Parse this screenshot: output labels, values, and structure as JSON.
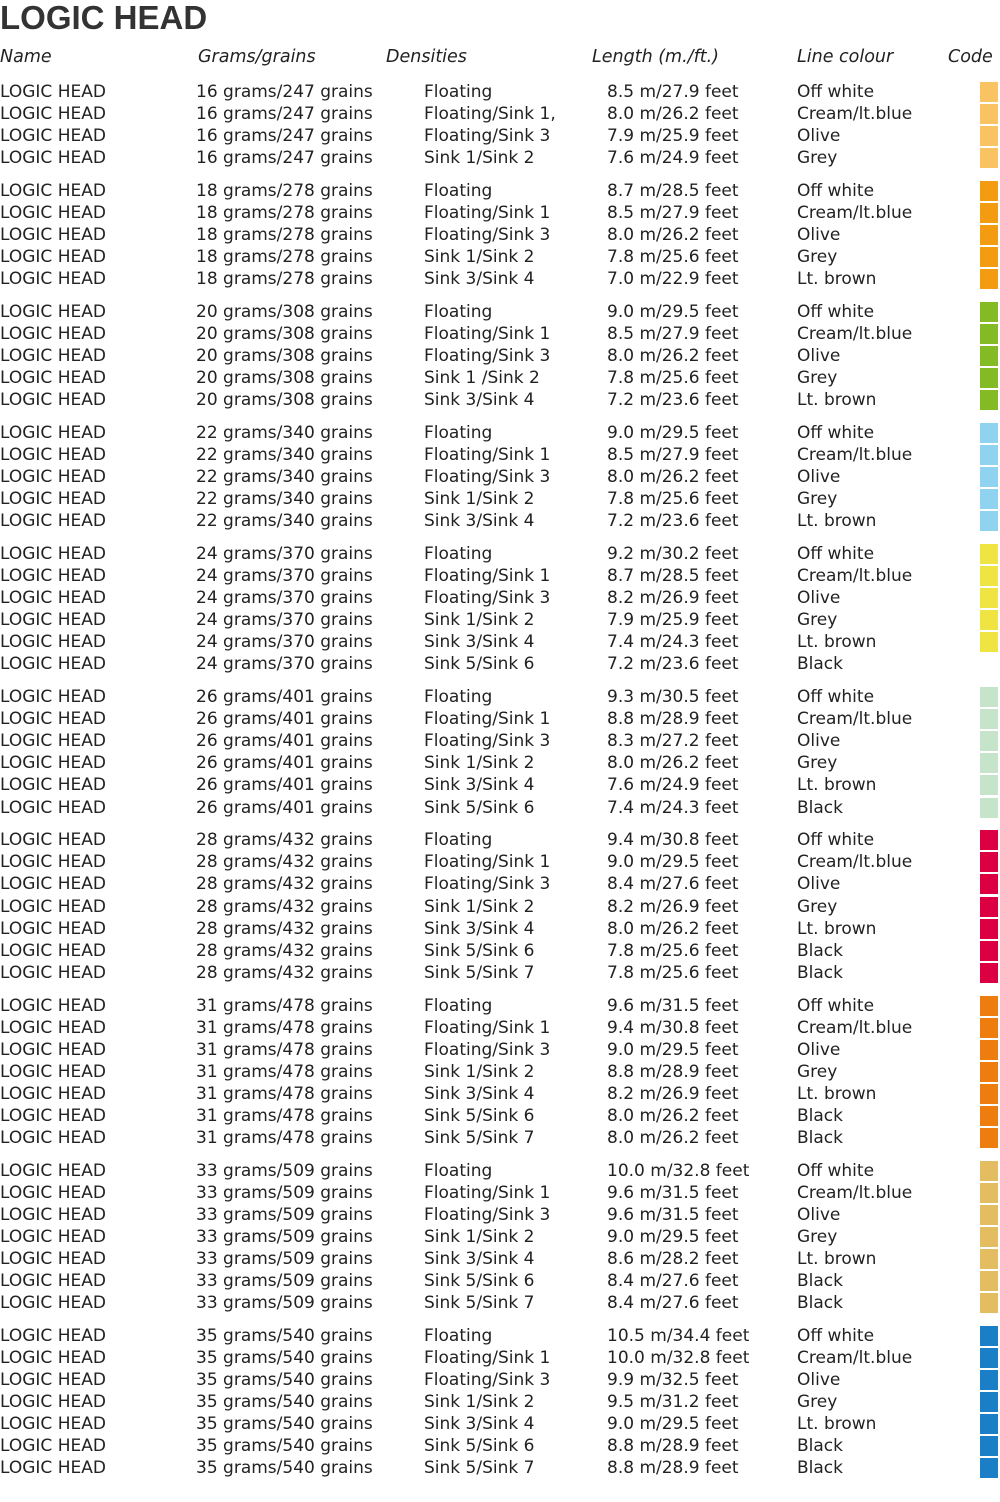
{
  "title": "LOGIC HEAD",
  "headers": [
    "Name",
    "Grams/grains",
    "Densities",
    "Length (m./ft.)",
    "Line colour",
    "Code"
  ],
  "groups": [
    {
      "codes": [
        "#f9c363",
        "#f9c363",
        "#f9c363",
        "#f9c363"
      ],
      "rows": [
        [
          "LOGIC HEAD",
          "16 grams/247 grains",
          "Floating",
          "8.5 m/27.9 feet",
          "Off white"
        ],
        [
          "LOGIC HEAD",
          "16 grams/247 grains",
          "Floating/Sink 1,",
          "8.0 m/26.2 feet",
          "Cream/lt.blue"
        ],
        [
          "LOGIC HEAD",
          "16 grams/247 grains",
          "Floating/Sink 3",
          "7.9 m/25.9 feet",
          "Olive"
        ],
        [
          "LOGIC HEAD",
          "16 grams/247 grains",
          "Sink 1/Sink 2",
          "7.6 m/24.9 feet",
          "Grey"
        ]
      ]
    },
    {
      "codes": [
        "#f39c12",
        "#f39c12",
        "#f39c12",
        "#f39c12",
        "#f39c12"
      ],
      "rows": [
        [
          "LOGIC HEAD",
          "18 grams/278 grains",
          "Floating",
          "8.7 m/28.5 feet",
          "Off white"
        ],
        [
          "LOGIC HEAD",
          "18 grams/278 grains",
          "Floating/Sink 1",
          "8.5 m/27.9 feet",
          "Cream/lt.blue"
        ],
        [
          "LOGIC HEAD",
          "18 grams/278 grains",
          "Floating/Sink 3",
          "8.0 m/26.2 feet",
          "Olive"
        ],
        [
          "LOGIC HEAD",
          "18 grams/278 grains",
          "Sink 1/Sink 2",
          "7.8 m/25.6 feet",
          "Grey"
        ],
        [
          "LOGIC HEAD",
          "18 grams/278 grains",
          "Sink 3/Sink 4",
          "7.0 m/22.9 feet",
          "Lt. brown"
        ]
      ]
    },
    {
      "codes": [
        "#84bb25",
        "#84bb25",
        "#84bb25",
        "#84bb25",
        "#84bb25"
      ],
      "rows": [
        [
          "LOGIC HEAD",
          "20 grams/308 grains",
          "Floating",
          "9.0 m/29.5 feet",
          "Off white"
        ],
        [
          "LOGIC HEAD",
          "20 grams/308 grains",
          "Floating/Sink 1",
          "8.5 m/27.9 feet",
          "Cream/lt.blue"
        ],
        [
          "LOGIC HEAD",
          "20 grams/308 grains",
          "Floating/Sink 3",
          "8.0 m/26.2 feet",
          "Olive"
        ],
        [
          "LOGIC HEAD",
          "20 grams/308 grains",
          "Sink 1 /Sink 2",
          "7.8 m/25.6 feet",
          "Grey"
        ],
        [
          "LOGIC HEAD",
          "20 grams/308 grains",
          "Sink 3/Sink 4",
          "7.2 m/23.6 feet",
          "Lt. brown"
        ]
      ]
    },
    {
      "codes": [
        "#8fd3f0",
        "#8fd3f0",
        "#8fd3f0",
        "#8fd3f0",
        "#8fd3f0"
      ],
      "rows": [
        [
          "LOGIC HEAD",
          "22 grams/340 grains",
          "Floating",
          "9.0 m/29.5 feet",
          "Off white"
        ],
        [
          "LOGIC HEAD",
          "22 grams/340 grains",
          "Floating/Sink 1",
          "8.5 m/27.9 feet",
          "Cream/lt.blue"
        ],
        [
          "LOGIC HEAD",
          "22 grams/340 grains",
          "Floating/Sink 3",
          "8.0 m/26.2 feet",
          "Olive"
        ],
        [
          "LOGIC HEAD",
          "22 grams/340 grains",
          "Sink 1/Sink 2",
          "7.8 m/25.6 feet",
          "Grey"
        ],
        [
          "LOGIC HEAD",
          "22 grams/340 grains",
          "Sink 3/Sink 4",
          "7.2 m/23.6 feet",
          "Lt. brown"
        ]
      ]
    },
    {
      "codes": [
        "#f0e442",
        "#f0e442",
        "#f0e442",
        "#f0e442",
        "#f0e442",
        null
      ],
      "rows": [
        [
          "LOGIC HEAD",
          "24 grams/370 grains",
          "Floating",
          "9.2 m/30.2 feet",
          "Off white"
        ],
        [
          "LOGIC HEAD",
          "24 grams/370 grains",
          "Floating/Sink 1",
          "8.7 m/28.5 feet",
          "Cream/lt.blue"
        ],
        [
          "LOGIC HEAD",
          "24 grams/370 grains",
          "Floating/Sink 3",
          "8.2 m/26.9 feet",
          "Olive"
        ],
        [
          "LOGIC HEAD",
          "24 grams/370 grains",
          "Sink 1/Sink 2",
          "7.9 m/25.9 feet",
          "Grey"
        ],
        [
          "LOGIC HEAD",
          "24 grams/370 grains",
          "Sink 3/Sink 4",
          "7.4 m/24.3 feet",
          "Lt. brown"
        ],
        [
          "LOGIC HEAD",
          "24 grams/370 grains",
          "Sink 5/Sink 6",
          "7.2 m/23.6 feet",
          "Black"
        ]
      ]
    },
    {
      "codes": [
        "#c6e4c9",
        "#c6e4c9",
        "#c6e4c9",
        "#c6e4c9",
        "#c6e4c9",
        "#c6e4c9"
      ],
      "rows": [
        [
          "LOGIC HEAD",
          "26 grams/401 grains",
          "Floating",
          "9.3 m/30.5 feet",
          "Off white"
        ],
        [
          "LOGIC HEAD",
          "26 grams/401 grains",
          "Floating/Sink 1",
          "8.8 m/28.9 feet",
          "Cream/lt.blue"
        ],
        [
          "LOGIC HEAD",
          "26 grams/401 grains",
          "Floating/Sink 3",
          "8.3 m/27.2 feet",
          "Olive"
        ],
        [
          "LOGIC HEAD",
          "26 grams/401 grains",
          "Sink 1/Sink 2",
          "8.0 m/26.2 feet",
          "Grey"
        ],
        [
          "LOGIC HEAD",
          "26 grams/401 grains",
          "Sink 3/Sink 4",
          "7.6 m/24.9 feet",
          "Lt. brown"
        ],
        [
          "LOGIC HEAD",
          "26 grams/401 grains",
          "Sink 5/Sink 6",
          "7.4 m/24.3 feet",
          "Black"
        ]
      ]
    },
    {
      "codes": [
        "#dc0042",
        "#dc0042",
        "#dc0042",
        "#dc0042",
        "#dc0042",
        "#dc0042",
        "#dc0042"
      ],
      "rows": [
        [
          "LOGIC HEAD",
          "28 grams/432 grains",
          "Floating",
          "9.4 m/30.8 feet",
          "Off white"
        ],
        [
          "LOGIC HEAD",
          "28 grams/432 grains",
          "Floating/Sink 1",
          "9.0 m/29.5 feet",
          "Cream/lt.blue"
        ],
        [
          "LOGIC HEAD",
          "28 grams/432 grains",
          "Floating/Sink 3",
          "8.4 m/27.6 feet",
          "Olive"
        ],
        [
          "LOGIC HEAD",
          "28 grams/432 grains",
          "Sink 1/Sink 2",
          "8.2 m/26.9 feet",
          "Grey"
        ],
        [
          "LOGIC HEAD",
          "28 grams/432 grains",
          "Sink 3/Sink 4",
          "8.0 m/26.2 feet",
          "Lt. brown"
        ],
        [
          "LOGIC HEAD",
          "28 grams/432 grains",
          "Sink 5/Sink 6",
          "7.8 m/25.6 feet",
          "Black"
        ],
        [
          "LOGIC HEAD",
          "28 grams/432 grains",
          "Sink 5/Sink 7",
          "7.8 m/25.6 feet",
          "Black"
        ]
      ]
    },
    {
      "codes": [
        "#ee7d10",
        "#ee7d10",
        "#ee7d10",
        "#ee7d10",
        "#ee7d10",
        "#ee7d10",
        "#ee7d10"
      ],
      "rows": [
        [
          "LOGIC HEAD",
          "31 grams/478 grains",
          "Floating",
          "9.6 m/31.5 feet",
          "Off white"
        ],
        [
          "LOGIC HEAD",
          "31 grams/478 grains",
          "Floating/Sink 1",
          "9.4 m/30.8 feet",
          "Cream/lt.blue"
        ],
        [
          "LOGIC HEAD",
          "31 grams/478 grains",
          "Floating/Sink 3",
          "9.0 m/29.5 feet",
          "Olive"
        ],
        [
          "LOGIC HEAD",
          "31 grams/478 grains",
          "Sink 1/Sink 2",
          "8.8 m/28.9 feet",
          "Grey"
        ],
        [
          "LOGIC HEAD",
          "31 grams/478 grains",
          "Sink 3/Sink 4",
          "8.2 m/26.9 feet",
          "Lt. brown"
        ],
        [
          "LOGIC HEAD",
          "31 grams/478 grains",
          "Sink 5/Sink 6",
          "8.0 m/26.2 feet",
          "Black"
        ],
        [
          "LOGIC HEAD",
          "31 grams/478 grains",
          "Sink 5/Sink 7",
          "8.0 m/26.2 feet",
          "Black"
        ]
      ]
    },
    {
      "codes": [
        "#e4bd62",
        "#e4bd62",
        "#e4bd62",
        "#e4bd62",
        "#e4bd62",
        "#e4bd62",
        "#e4bd62"
      ],
      "rows": [
        [
          "LOGIC HEAD",
          "33 grams/509 grains",
          "Floating",
          "10.0 m/32.8 feet",
          "Off white"
        ],
        [
          "LOGIC HEAD",
          "33 grams/509 grains",
          "Floating/Sink 1",
          "9.6 m/31.5 feet",
          "Cream/lt.blue"
        ],
        [
          "LOGIC HEAD",
          "33 grams/509 grains",
          "Floating/Sink 3",
          "9.6 m/31.5 feet",
          "Olive"
        ],
        [
          "LOGIC HEAD",
          "33 grams/509 grains",
          "Sink 1/Sink 2",
          "9.0 m/29.5 feet",
          "Grey"
        ],
        [
          "LOGIC HEAD",
          "33 grams/509 grains",
          "Sink 3/Sink 4",
          "8.6 m/28.2 feet",
          "Lt. brown"
        ],
        [
          "LOGIC HEAD",
          "33 grams/509 grains",
          "Sink 5/Sink 6",
          "8.4 m/27.6 feet",
          "Black"
        ],
        [
          "LOGIC HEAD",
          "33 grams/509 grains",
          "Sink 5/Sink 7",
          "8.4 m/27.6 feet",
          "Black"
        ]
      ]
    },
    {
      "codes": [
        "#1a7fc6",
        "#1a7fc6",
        "#1a7fc6",
        "#1a7fc6",
        "#1a7fc6",
        "#1a7fc6",
        "#1a7fc6"
      ],
      "rows": [
        [
          "LOGIC HEAD",
          "35 grams/540 grains",
          "Floating",
          "10.5 m/34.4 feet",
          "Off white"
        ],
        [
          "LOGIC HEAD",
          "35 grams/540 grains",
          "Floating/Sink 1",
          "10.0 m/32.8 feet",
          "Cream/lt.blue"
        ],
        [
          "LOGIC HEAD",
          "35 grams/540 grains",
          "Floating/Sink 3",
          "9.9 m/32.5 feet",
          "Olive"
        ],
        [
          "LOGIC HEAD",
          "35 grams/540 grains",
          "Sink 1/Sink 2",
          "9.5 m/31.2 feet",
          "Grey"
        ],
        [
          "LOGIC HEAD",
          "35 grams/540 grains",
          "Sink 3/Sink 4",
          "9.0 m/29.5 feet",
          "Lt. brown"
        ],
        [
          "LOGIC HEAD",
          "35 grams/540 grains",
          "Sink 5/Sink 6",
          "8.8 m/28.9 feet",
          "Black"
        ],
        [
          "LOGIC HEAD",
          "35 grams/540 grains",
          "Sink 5/Sink 7",
          "8.8 m/28.9 feet",
          "Black"
        ]
      ]
    }
  ]
}
